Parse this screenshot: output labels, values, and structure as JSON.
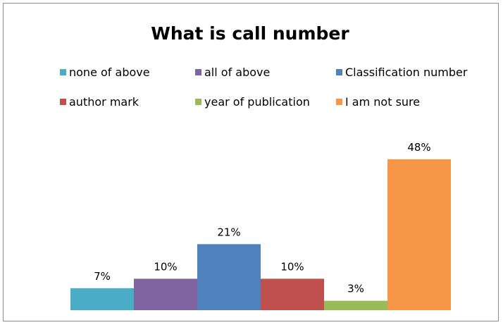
{
  "chart_data": {
    "type": "bar",
    "title": "What is call number",
    "xlabel": "",
    "ylabel": "",
    "ylim": [
      0,
      50
    ],
    "grid": false,
    "legend_position": "top",
    "categories": [
      "none of above",
      "all of above",
      "Classification number",
      "author mark",
      "year of publication",
      "I am not sure"
    ],
    "values": [
      7,
      10,
      21,
      10,
      3,
      48
    ],
    "data_labels": [
      "7%",
      "10%",
      "21%",
      "10%",
      "3%",
      "48%"
    ],
    "colors": [
      "#4bacc6",
      "#8064a2",
      "#4f81bd",
      "#c0504d",
      "#9bbb59",
      "#f79646"
    ]
  }
}
